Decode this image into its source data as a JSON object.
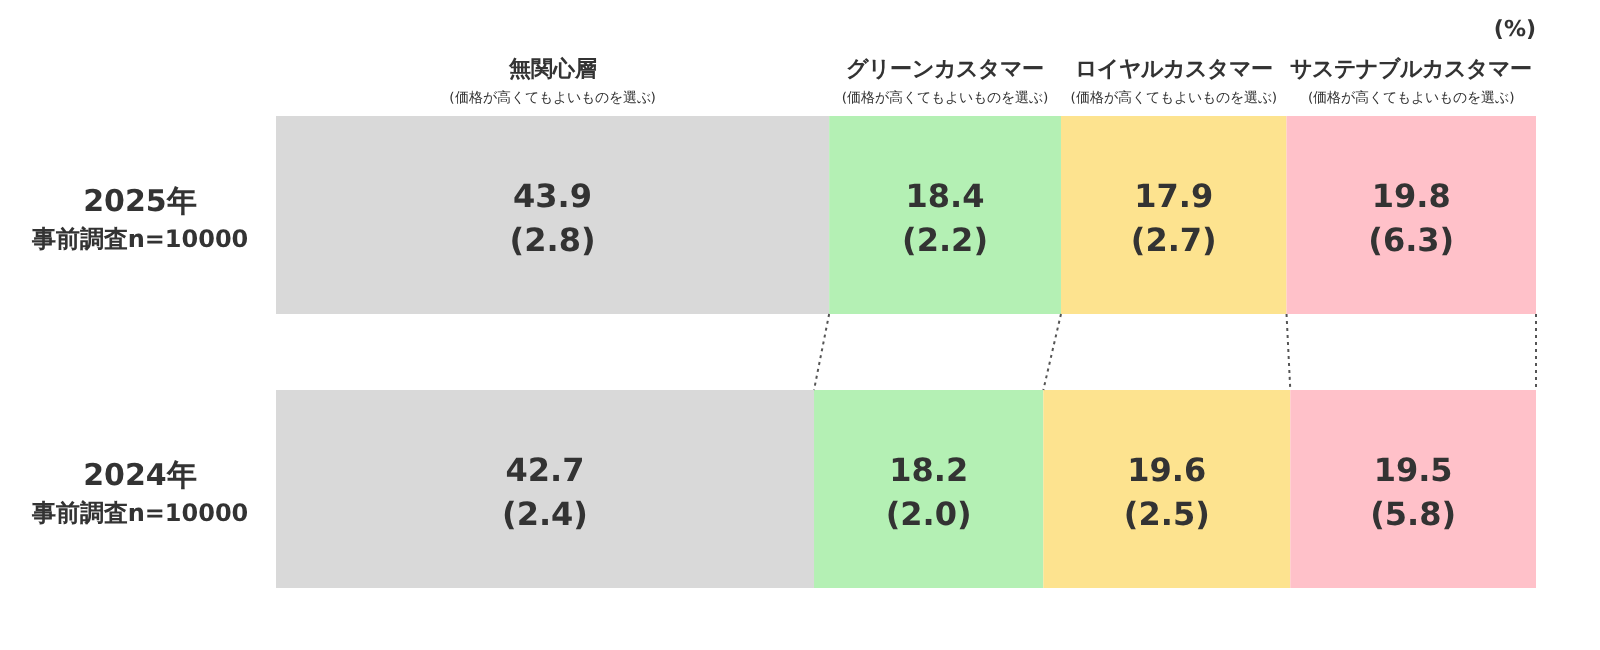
{
  "chart_data": {
    "type": "bar",
    "orientation": "horizontal",
    "stacked": true,
    "legend": "top",
    "xlim": [
      0,
      100
    ],
    "tick_labels": "y",
    "categories": [
      "2025年事前調査n=10000",
      "2024年事前調査n=10000"
    ],
    "series": [
      {
        "name": "無関心層 (価格が高くてもよいものを選ぶ)",
        "color": "#d9d9d9",
        "values": [
          43.9,
          42.7
        ],
        "value_labels": [
          "43.9 (2.8)",
          "42.7 (2.4)"
        ]
      },
      {
        "name": "グリーンカスタマー (価格が高くてもよいものを選ぶ)",
        "color": "#b4f0b4",
        "values": [
          18.4,
          18.2
        ],
        "value_labels": [
          "18.4 (2.2)",
          "18.2 (2.0)"
        ]
      },
      {
        "name": "ロイヤルカスタマー (価格が高くてもよいものを選ぶ)",
        "color": "#fde38f",
        "values": [
          17.9,
          19.6
        ],
        "value_labels": [
          "17.9 (2.7)",
          "19.6 (2.5)"
        ]
      },
      {
        "name": "サステナブルカスタマー (価格が高くてもよいものを選ぶ)",
        "color": "#ffc1c9",
        "values": [
          19.8,
          19.5
        ],
        "value_labels": [
          "19.8 (6.3)",
          "19.5 (5.8)"
        ]
      }
    ],
    "annotations": [
      "(%)"
    ]
  }
}
